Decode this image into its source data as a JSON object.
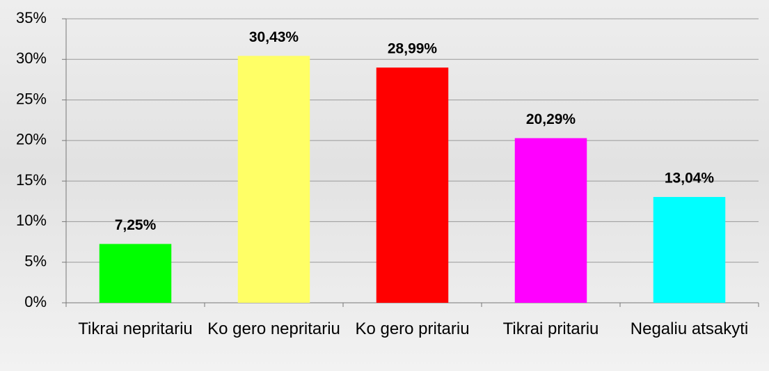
{
  "chart_data": {
    "type": "bar",
    "categories": [
      "Tikrai nepritariu",
      "Ko gero nepritariu",
      "Ko gero pritariu",
      "Tikrai pritariu",
      "Negaliu atsakyti"
    ],
    "values": [
      7.25,
      30.43,
      28.99,
      20.29,
      13.04
    ],
    "value_labels": [
      "7,25%",
      "30,43%",
      "28,99%",
      "20,29%",
      "13,04%"
    ],
    "colors": [
      "#00ff00",
      "#ffff66",
      "#ff0000",
      "#ff00ff",
      "#00ffff"
    ],
    "ylim": [
      0,
      35
    ],
    "yticks": [
      {
        "value": 0,
        "label": "0%"
      },
      {
        "value": 5,
        "label": "5%"
      },
      {
        "value": 10,
        "label": "10%"
      },
      {
        "value": 15,
        "label": "15%"
      },
      {
        "value": 20,
        "label": "20%"
      },
      {
        "value": 25,
        "label": "25%"
      },
      {
        "value": 30,
        "label": "30%"
      },
      {
        "value": 35,
        "label": "35%"
      }
    ],
    "grid": true
  }
}
